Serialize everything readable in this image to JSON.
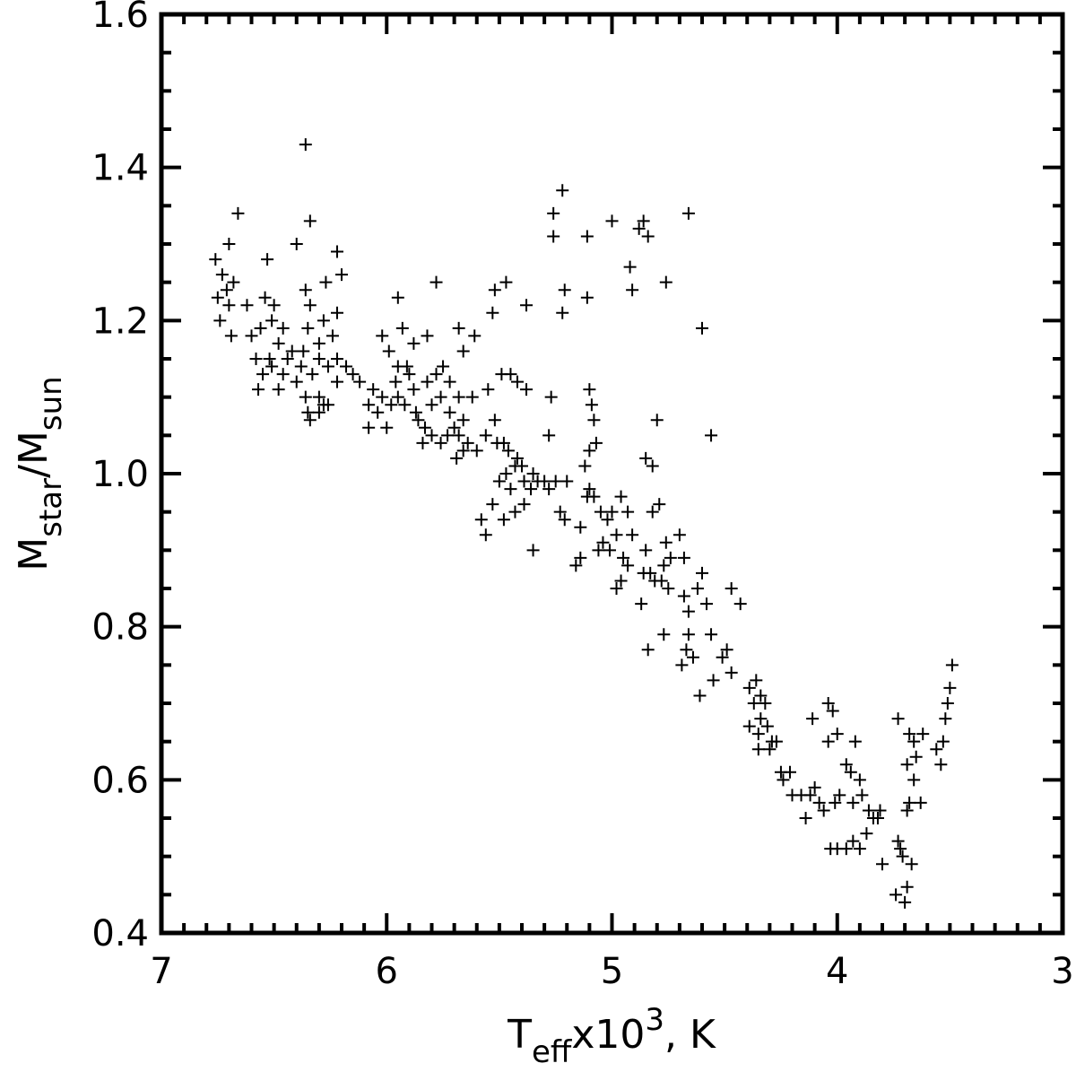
{
  "chart_data": {
    "type": "scatter",
    "title": "",
    "marker": "plus",
    "xlim": [
      7,
      3
    ],
    "ylim": [
      0.4,
      1.6
    ],
    "x_ticks": [
      7,
      6,
      5,
      4,
      3
    ],
    "x_tick_labels": [
      "7",
      "6",
      "5",
      "4",
      "3"
    ],
    "y_ticks": [
      0.4,
      0.6,
      0.8,
      1.0,
      1.2,
      1.4,
      1.6
    ],
    "y_tick_labels": [
      "0.4",
      "0.6",
      "0.8",
      "1.0",
      "1.2",
      "1.4",
      "1.6"
    ],
    "x_minor_step": 0.1,
    "y_minor_step": 0.05,
    "xlabel": {
      "main": "T",
      "sub": "eff",
      "mid": "x10",
      "sup": "3",
      "tail": ", K"
    },
    "ylabel": {
      "main1": "M",
      "sub1": "star",
      "mid": "/M",
      "sub2": "sun"
    },
    "grid": false,
    "legend": "none",
    "series": [
      {
        "points": [
          [
            6.36,
            1.43
          ],
          [
            6.66,
            1.34
          ],
          [
            6.34,
            1.33
          ],
          [
            6.4,
            1.3
          ],
          [
            6.7,
            1.3
          ],
          [
            6.22,
            1.29
          ],
          [
            6.76,
            1.28
          ],
          [
            6.53,
            1.28
          ],
          [
            6.2,
            1.26
          ],
          [
            6.73,
            1.26
          ],
          [
            6.68,
            1.25
          ],
          [
            6.71,
            1.24
          ],
          [
            6.27,
            1.25
          ],
          [
            6.36,
            1.24
          ],
          [
            6.54,
            1.23
          ],
          [
            6.75,
            1.23
          ],
          [
            6.74,
            1.2
          ],
          [
            6.7,
            1.22
          ],
          [
            6.62,
            1.22
          ],
          [
            6.5,
            1.22
          ],
          [
            6.34,
            1.22
          ],
          [
            6.22,
            1.21
          ],
          [
            6.28,
            1.2
          ],
          [
            6.46,
            1.19
          ],
          [
            6.56,
            1.19
          ],
          [
            6.6,
            1.18
          ],
          [
            6.69,
            1.18
          ],
          [
            6.51,
            1.2
          ],
          [
            6.35,
            1.19
          ],
          [
            6.3,
            1.17
          ],
          [
            6.24,
            1.18
          ],
          [
            6.48,
            1.17
          ],
          [
            6.42,
            1.16
          ],
          [
            6.37,
            1.16
          ],
          [
            6.44,
            1.15
          ],
          [
            6.52,
            1.15
          ],
          [
            6.58,
            1.15
          ],
          [
            6.3,
            1.15
          ],
          [
            6.26,
            1.14
          ],
          [
            6.38,
            1.14
          ],
          [
            6.46,
            1.13
          ],
          [
            6.51,
            1.14
          ],
          [
            6.55,
            1.13
          ],
          [
            6.22,
            1.15
          ],
          [
            6.18,
            1.14
          ],
          [
            6.15,
            1.13
          ],
          [
            6.33,
            1.13
          ],
          [
            6.4,
            1.12
          ],
          [
            6.48,
            1.11
          ],
          [
            6.57,
            1.11
          ],
          [
            6.36,
            1.1
          ],
          [
            6.3,
            1.1
          ],
          [
            6.26,
            1.09
          ],
          [
            6.22,
            1.12
          ],
          [
            6.12,
            1.12
          ],
          [
            6.06,
            1.11
          ],
          [
            6.02,
            1.1
          ],
          [
            6.08,
            1.09
          ],
          [
            6.04,
            1.08
          ],
          [
            5.98,
            1.09
          ],
          [
            5.95,
            1.1
          ],
          [
            6.0,
            1.06
          ],
          [
            6.08,
            1.06
          ],
          [
            6.35,
            1.08
          ],
          [
            6.3,
            1.08
          ],
          [
            6.34,
            1.07
          ],
          [
            6.28,
            1.09
          ],
          [
            5.96,
            1.12
          ],
          [
            5.9,
            1.13
          ],
          [
            5.88,
            1.11
          ],
          [
            5.92,
            1.09
          ],
          [
            5.87,
            1.08
          ],
          [
            5.86,
            1.07
          ],
          [
            5.83,
            1.06
          ],
          [
            5.8,
            1.09
          ],
          [
            5.76,
            1.1
          ],
          [
            5.72,
            1.08
          ],
          [
            5.7,
            1.06
          ],
          [
            5.66,
            1.07
          ],
          [
            5.68,
            1.05
          ],
          [
            5.73,
            1.05
          ],
          [
            5.76,
            1.04
          ],
          [
            5.8,
            1.05
          ],
          [
            5.84,
            1.04
          ],
          [
            5.64,
            1.04
          ],
          [
            5.6,
            1.03
          ],
          [
            5.66,
            1.03
          ],
          [
            5.69,
            1.02
          ],
          [
            5.62,
            1.1
          ],
          [
            5.68,
            1.1
          ],
          [
            5.72,
            1.12
          ],
          [
            5.75,
            1.14
          ],
          [
            5.78,
            1.13
          ],
          [
            5.82,
            1.12
          ],
          [
            5.95,
            1.14
          ],
          [
            5.99,
            1.16
          ],
          [
            6.02,
            1.18
          ],
          [
            5.93,
            1.19
          ],
          [
            5.88,
            1.17
          ],
          [
            5.91,
            1.14
          ],
          [
            5.95,
            1.23
          ],
          [
            5.82,
            1.18
          ],
          [
            5.78,
            1.25
          ],
          [
            5.68,
            1.19
          ],
          [
            5.66,
            1.16
          ],
          [
            5.61,
            1.18
          ],
          [
            5.53,
            1.21
          ],
          [
            5.52,
            1.24
          ],
          [
            5.47,
            1.25
          ],
          [
            5.38,
            1.22
          ],
          [
            5.45,
            1.13
          ],
          [
            5.49,
            1.13
          ],
          [
            5.42,
            1.12
          ],
          [
            5.38,
            1.11
          ],
          [
            5.55,
            1.11
          ],
          [
            5.52,
            1.07
          ],
          [
            5.56,
            1.05
          ],
          [
            5.51,
            1.04
          ],
          [
            5.48,
            1.04
          ],
          [
            5.46,
            1.03
          ],
          [
            5.42,
            1.02
          ],
          [
            5.4,
            1.01
          ],
          [
            5.43,
            1.01
          ],
          [
            5.47,
            1.0
          ],
          [
            5.5,
            0.99
          ],
          [
            5.45,
            0.98
          ],
          [
            5.39,
            0.99
          ],
          [
            5.35,
            1.0
          ],
          [
            5.33,
            0.99
          ],
          [
            5.3,
            0.99
          ],
          [
            5.28,
            0.98
          ],
          [
            5.36,
            0.98
          ],
          [
            5.39,
            0.96
          ],
          [
            5.43,
            0.95
          ],
          [
            5.48,
            0.94
          ],
          [
            5.53,
            0.96
          ],
          [
            5.58,
            0.94
          ],
          [
            5.56,
            0.92
          ],
          [
            5.35,
            0.9
          ],
          [
            5.25,
            0.99
          ],
          [
            5.2,
            0.99
          ],
          [
            5.23,
            0.95
          ],
          [
            5.21,
            0.94
          ],
          [
            5.14,
            0.93
          ],
          [
            5.28,
            1.05
          ],
          [
            5.27,
            1.1
          ],
          [
            5.1,
            1.11
          ],
          [
            5.09,
            1.09
          ],
          [
            5.08,
            1.07
          ],
          [
            5.07,
            1.04
          ],
          [
            5.1,
            1.03
          ],
          [
            5.12,
            1.01
          ],
          [
            5.1,
            0.98
          ],
          [
            5.08,
            0.97
          ],
          [
            5.11,
            0.97
          ],
          [
            5.05,
            0.95
          ],
          [
            5.02,
            0.94
          ],
          [
            5.0,
            0.95
          ],
          [
            4.98,
            0.92
          ],
          [
            5.04,
            0.91
          ],
          [
            5.06,
            0.9
          ],
          [
            5.01,
            0.9
          ],
          [
            5.14,
            0.89
          ],
          [
            5.16,
            0.88
          ],
          [
            4.96,
            0.97
          ],
          [
            4.93,
            0.95
          ],
          [
            4.91,
            0.92
          ],
          [
            4.95,
            0.89
          ],
          [
            4.93,
            0.88
          ],
          [
            4.96,
            0.86
          ],
          [
            4.98,
            0.85
          ],
          [
            4.86,
            0.87
          ],
          [
            4.83,
            0.87
          ],
          [
            4.81,
            0.86
          ],
          [
            4.78,
            0.86
          ],
          [
            4.75,
            0.85
          ],
          [
            4.77,
            0.88
          ],
          [
            4.74,
            0.89
          ],
          [
            4.76,
            0.91
          ],
          [
            4.7,
            0.92
          ],
          [
            4.68,
            0.89
          ],
          [
            4.85,
            0.9
          ],
          [
            4.82,
            0.95
          ],
          [
            4.85,
            1.02
          ],
          [
            4.82,
            1.01
          ],
          [
            4.79,
            0.96
          ],
          [
            4.8,
            1.07
          ],
          [
            4.56,
            1.05
          ],
          [
            4.6,
            1.19
          ],
          [
            4.66,
            1.34
          ],
          [
            4.86,
            1.33
          ],
          [
            4.88,
            1.32
          ],
          [
            4.84,
            1.31
          ],
          [
            4.92,
            1.27
          ],
          [
            4.91,
            1.24
          ],
          [
            4.76,
            1.25
          ],
          [
            5.0,
            1.33
          ],
          [
            5.11,
            1.31
          ],
          [
            5.22,
            1.37
          ],
          [
            5.26,
            1.34
          ],
          [
            5.26,
            1.31
          ],
          [
            5.21,
            1.24
          ],
          [
            5.22,
            1.21
          ],
          [
            5.11,
            1.23
          ],
          [
            4.87,
            0.83
          ],
          [
            4.84,
            0.77
          ],
          [
            4.77,
            0.79
          ],
          [
            4.68,
            0.84
          ],
          [
            4.66,
            0.82
          ],
          [
            4.66,
            0.79
          ],
          [
            4.67,
            0.77
          ],
          [
            4.64,
            0.76
          ],
          [
            4.69,
            0.75
          ],
          [
            4.61,
            0.71
          ],
          [
            4.6,
            0.87
          ],
          [
            4.62,
            0.85
          ],
          [
            4.58,
            0.83
          ],
          [
            4.56,
            0.79
          ],
          [
            4.55,
            0.73
          ],
          [
            4.51,
            0.76
          ],
          [
            4.49,
            0.77
          ],
          [
            4.47,
            0.74
          ],
          [
            4.43,
            0.83
          ],
          [
            4.47,
            0.85
          ],
          [
            4.39,
            0.72
          ],
          [
            4.36,
            0.73
          ],
          [
            4.34,
            0.71
          ],
          [
            4.32,
            0.7
          ],
          [
            4.34,
            0.68
          ],
          [
            4.37,
            0.7
          ],
          [
            4.39,
            0.67
          ],
          [
            4.35,
            0.66
          ],
          [
            4.31,
            0.67
          ],
          [
            4.29,
            0.65
          ],
          [
            4.27,
            0.65
          ],
          [
            4.3,
            0.64
          ],
          [
            4.35,
            0.64
          ],
          [
            4.25,
            0.61
          ],
          [
            4.21,
            0.61
          ],
          [
            4.24,
            0.6
          ],
          [
            4.2,
            0.58
          ],
          [
            4.16,
            0.58
          ],
          [
            4.12,
            0.58
          ],
          [
            4.1,
            0.59
          ],
          [
            4.08,
            0.57
          ],
          [
            4.06,
            0.56
          ],
          [
            4.14,
            0.55
          ],
          [
            4.11,
            0.68
          ],
          [
            4.04,
            0.7
          ],
          [
            4.02,
            0.69
          ],
          [
            4.0,
            0.66
          ],
          [
            4.04,
            0.65
          ],
          [
            3.99,
            0.58
          ],
          [
            4.01,
            0.57
          ],
          [
            3.96,
            0.62
          ],
          [
            3.94,
            0.61
          ],
          [
            3.92,
            0.65
          ],
          [
            3.9,
            0.6
          ],
          [
            3.93,
            0.57
          ],
          [
            3.89,
            0.58
          ],
          [
            3.86,
            0.56
          ],
          [
            3.84,
            0.55
          ],
          [
            3.82,
            0.55
          ],
          [
            3.81,
            0.56
          ],
          [
            3.87,
            0.53
          ],
          [
            3.9,
            0.51
          ],
          [
            3.93,
            0.52
          ],
          [
            3.96,
            0.51
          ],
          [
            4.0,
            0.51
          ],
          [
            4.03,
            0.51
          ],
          [
            3.8,
            0.49
          ],
          [
            3.73,
            0.52
          ],
          [
            3.72,
            0.51
          ],
          [
            3.71,
            0.5
          ],
          [
            3.74,
            0.45
          ],
          [
            3.69,
            0.46
          ],
          [
            3.7,
            0.44
          ],
          [
            3.67,
            0.49
          ],
          [
            3.73,
            0.68
          ],
          [
            3.68,
            0.66
          ],
          [
            3.66,
            0.65
          ],
          [
            3.65,
            0.63
          ],
          [
            3.69,
            0.62
          ],
          [
            3.66,
            0.6
          ],
          [
            3.63,
            0.57
          ],
          [
            3.68,
            0.57
          ],
          [
            3.69,
            0.56
          ],
          [
            3.62,
            0.66
          ],
          [
            3.56,
            0.64
          ],
          [
            3.54,
            0.62
          ],
          [
            3.53,
            0.65
          ],
          [
            3.51,
            0.7
          ],
          [
            3.52,
            0.68
          ],
          [
            3.5,
            0.72
          ],
          [
            3.49,
            0.75
          ]
        ]
      }
    ]
  }
}
